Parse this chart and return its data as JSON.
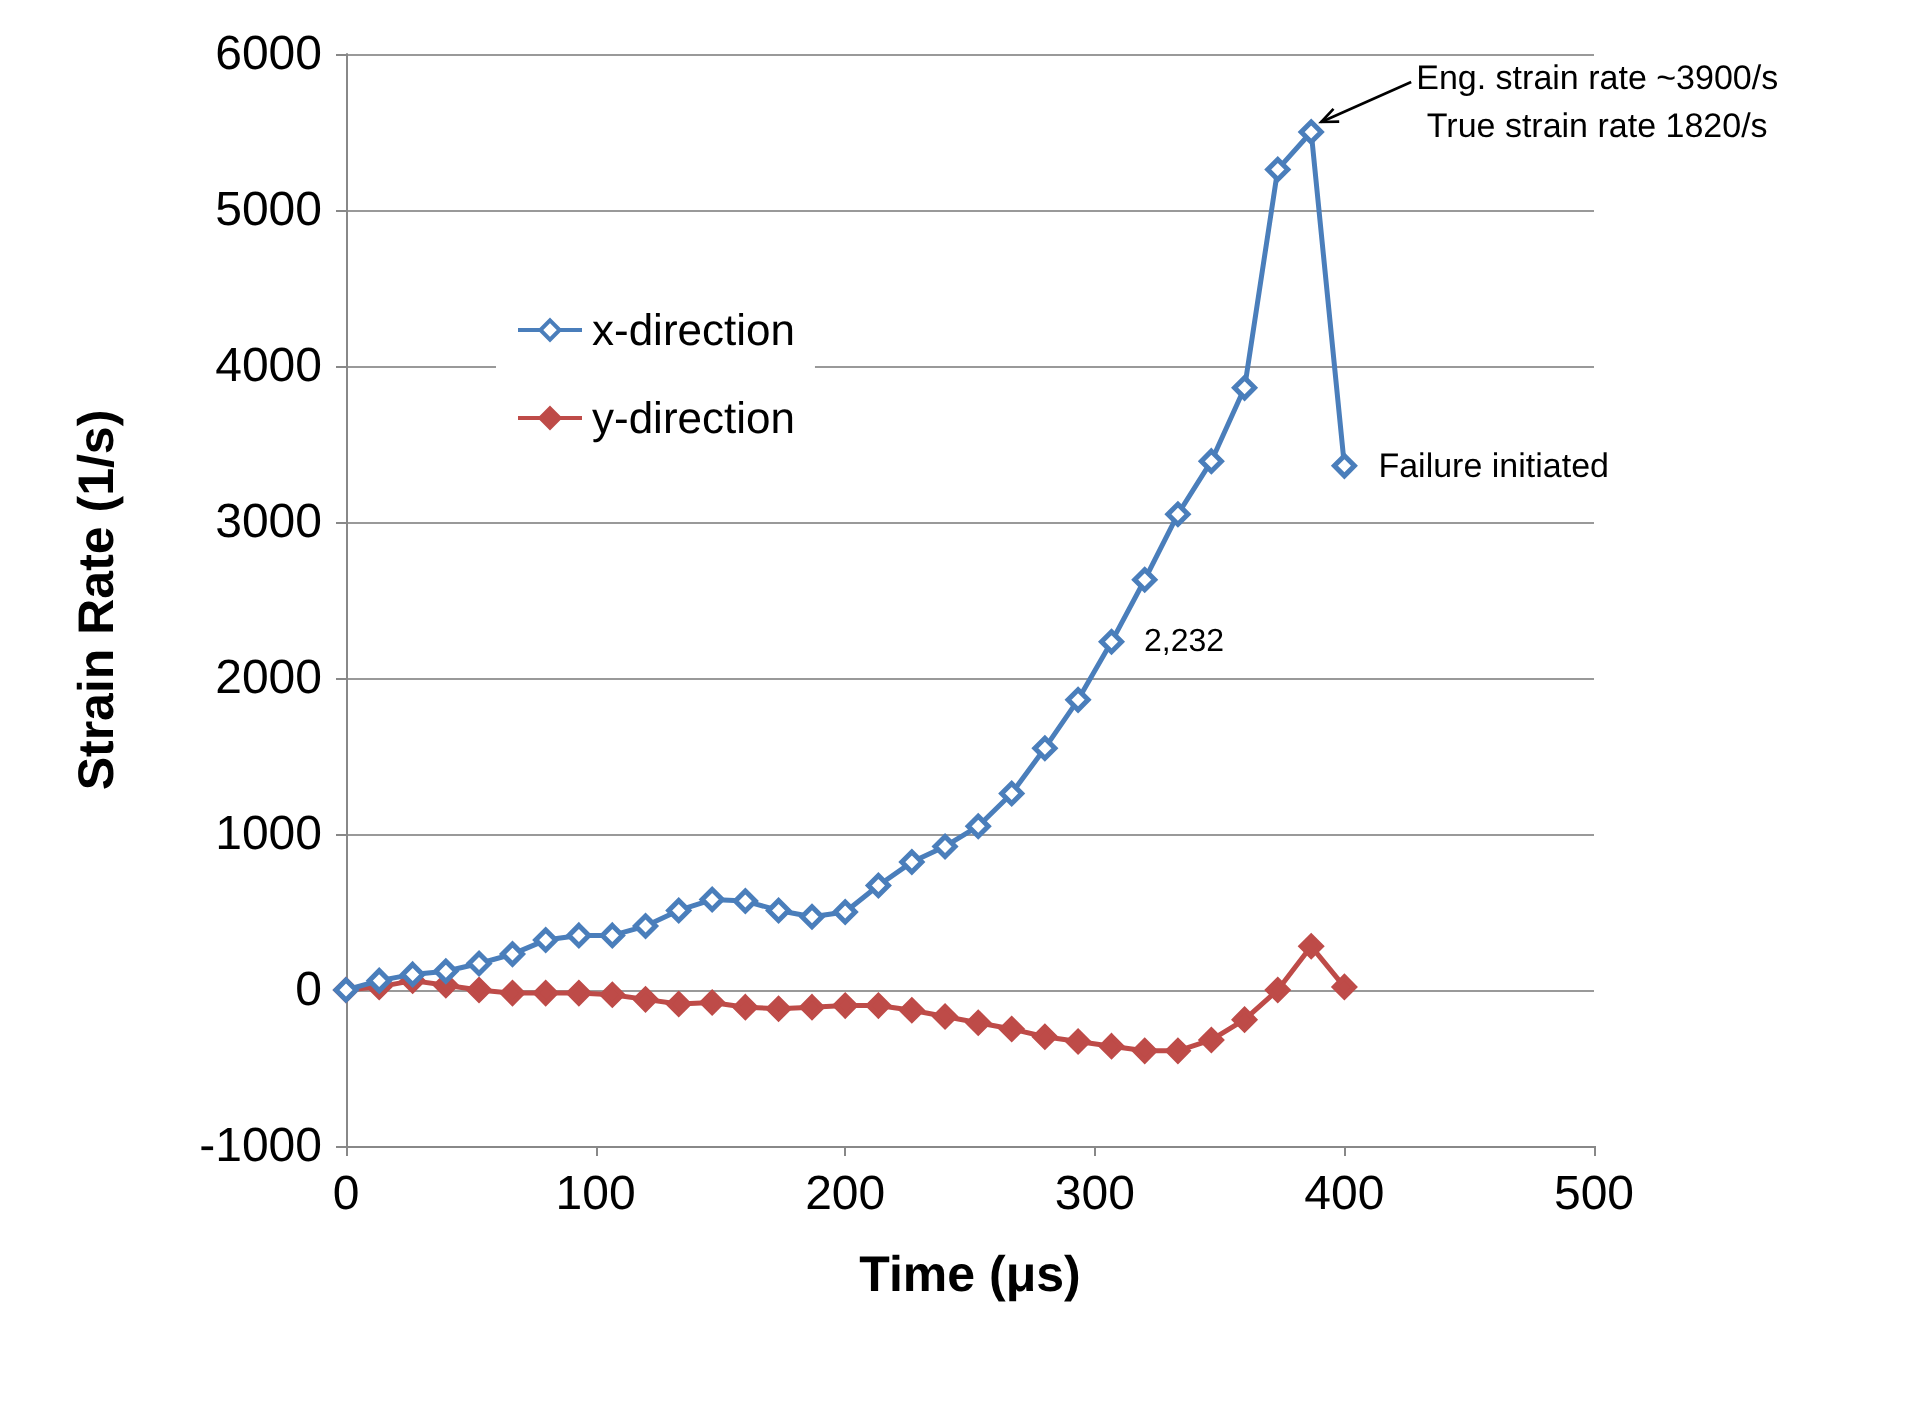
{
  "chart_data": {
    "type": "line",
    "xlabel": "Time (μs)",
    "ylabel": "Strain Rate (1/s)",
    "x": [
      0,
      13.3,
      26.7,
      40,
      53.3,
      66.7,
      80,
      93.3,
      106.7,
      120,
      133.3,
      146.7,
      160,
      173.3,
      186.7,
      200,
      213.3,
      226.7,
      240,
      253.3,
      266.7,
      280,
      293.3,
      306.7,
      320,
      333.3,
      346.7,
      360,
      373.3,
      386.7,
      400
    ],
    "series": [
      {
        "name": "x-direction",
        "color": "#4a7ebb",
        "values": [
          0,
          60,
          100,
          120,
          170,
          230,
          320,
          350,
          350,
          410,
          510,
          580,
          570,
          510,
          470,
          500,
          670,
          820,
          920,
          1050,
          1260,
          1550,
          1860,
          2232,
          2630,
          3050,
          3390,
          3860,
          5260,
          5500,
          3360
        ],
        "value_labels": [
          null,
          null,
          null,
          null,
          null,
          null,
          null,
          null,
          null,
          null,
          null,
          null,
          null,
          null,
          null,
          null,
          null,
          null,
          null,
          null,
          null,
          null,
          null,
          "2,232",
          null,
          null,
          null,
          null,
          null,
          null,
          null
        ]
      },
      {
        "name": "y-direction",
        "color": "#be4b48",
        "values": [
          0,
          20,
          60,
          30,
          0,
          -20,
          -20,
          -20,
          -30,
          -60,
          -90,
          -80,
          -110,
          -120,
          -110,
          -100,
          -100,
          -130,
          -170,
          -210,
          -250,
          -300,
          -330,
          -360,
          -390,
          -390,
          -320,
          -190,
          0,
          280,
          20
        ]
      }
    ],
    "annotations": [
      {
        "text": "Eng. strain rate ~3900/s\nTrue strain rate 1820/s",
        "x": 386.7,
        "y": 5500
      },
      {
        "text": "Failure initiated",
        "x": 400,
        "y": 3360
      }
    ],
    "xlim": [
      0,
      500
    ],
    "xticks": [
      0,
      100,
      200,
      300,
      400,
      500
    ],
    "ylim": [
      -1000,
      6000
    ],
    "yticks": [
      -1000,
      0,
      1000,
      2000,
      3000,
      4000,
      5000,
      6000
    ],
    "grid": "y",
    "legend": "top left",
    "marker": "diamond",
    "line_style": "solid"
  }
}
